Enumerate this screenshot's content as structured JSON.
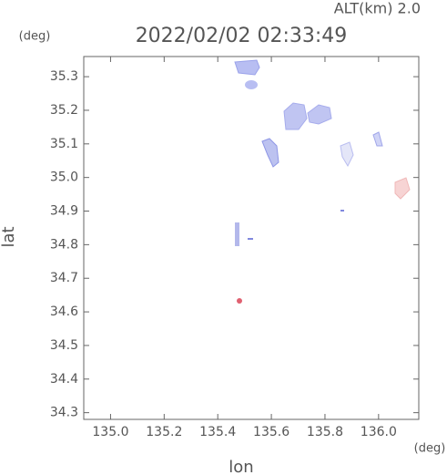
{
  "chart_data": {
    "type": "radar",
    "title": "2022/02/02 02:33:49",
    "subtitle": "ALT(km) 2.0",
    "x_label": "lon",
    "y_label": "lat",
    "x_unit": "(deg)",
    "y_unit": "(deg)",
    "xlim": [
      134.9,
      136.15
    ],
    "ylim": [
      34.28,
      35.36
    ],
    "xticks": [
      {
        "value": 135,
        "label": "135.0"
      },
      135.2,
      135.4,
      135.6,
      135.8,
      {
        "value": 136,
        "label": "136.0"
      }
    ],
    "yticks": [
      34.3,
      34.4,
      34.5,
      34.6,
      34.7,
      34.8,
      34.9,
      {
        "value": 35,
        "label": "35.0"
      },
      35.1,
      35.2,
      35.3
    ]
  }
}
